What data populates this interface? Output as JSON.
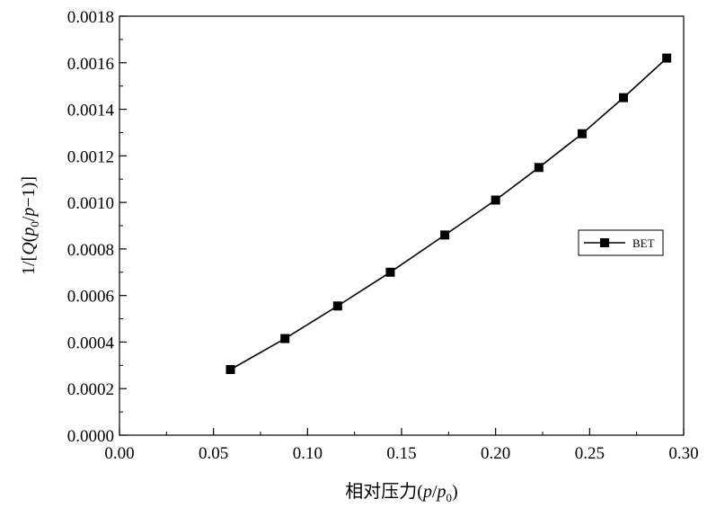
{
  "chart_data": {
    "type": "line",
    "xlabel": "相对压力(p/p0)",
    "ylabel": "1/[Q(p0/p−1)]",
    "xlim": [
      0.0,
      0.3
    ],
    "ylim": [
      0.0,
      0.0018
    ],
    "x_ticks": [
      "0.00",
      "0.05",
      "0.10",
      "0.15",
      "0.20",
      "0.25",
      "0.30"
    ],
    "y_ticks": [
      "0.0000",
      "0.0002",
      "0.0004",
      "0.0006",
      "0.0008",
      "0.0010",
      "0.0012",
      "0.0014",
      "0.0016",
      "0.0018"
    ],
    "grid": false,
    "legend_position": "right",
    "series": [
      {
        "name": "BET",
        "color": "#000000",
        "marker": "square",
        "x": [
          0.059,
          0.088,
          0.116,
          0.144,
          0.173,
          0.2,
          0.223,
          0.246,
          0.268,
          0.291
        ],
        "y": [
          0.000282,
          0.000415,
          0.000555,
          0.0007,
          0.00086,
          0.00101,
          0.00115,
          0.001295,
          0.00145,
          0.00162
        ]
      }
    ]
  }
}
